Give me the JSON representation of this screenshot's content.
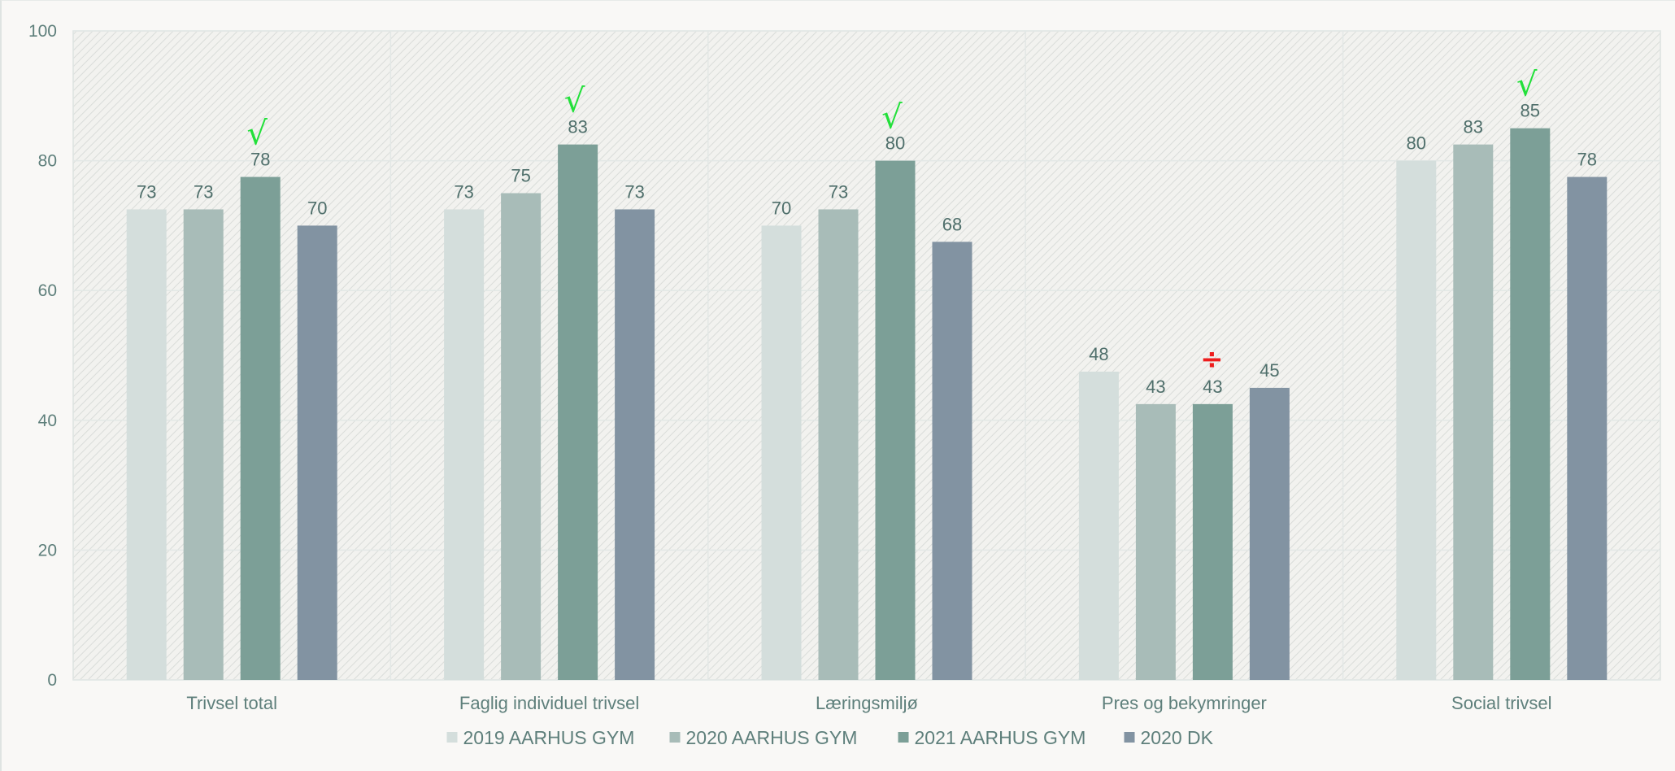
{
  "chart_data": {
    "type": "bar",
    "title": "",
    "xlabel": "",
    "ylabel": "",
    "ylim": [
      0,
      100
    ],
    "yticks": [
      "0",
      "20",
      "40",
      "60",
      "80",
      "100"
    ],
    "grid": true,
    "legend_position": "bottom",
    "categories": [
      "Trivsel total",
      "Faglig individuel trivsel",
      "Læringsmiljø",
      "Pres og bekymringer",
      "Social trivsel"
    ],
    "series": [
      {
        "name": "2019 AARHUS GYM",
        "color": "#d4dedc",
        "values": [
          72.5,
          72.5,
          70,
          47.5,
          80
        ],
        "labels": [
          "73",
          "73",
          "70",
          "48",
          "80"
        ]
      },
      {
        "name": "2020 AARHUS GYM",
        "color": "#a8bcb8",
        "values": [
          72.5,
          75,
          72.5,
          42.5,
          82.5
        ],
        "labels": [
          "73",
          "75",
          "73",
          "43",
          "83"
        ]
      },
      {
        "name": "2021 AARHUS GYM",
        "color": "#7c9f97",
        "values": [
          77.5,
          82.5,
          80,
          42.5,
          85
        ],
        "labels": [
          "78",
          "83",
          "80",
          "43",
          "85"
        ]
      },
      {
        "name": "2020 DK",
        "color": "#8293a2",
        "values": [
          70,
          72.5,
          67.5,
          45,
          77.5
        ],
        "labels": [
          "70",
          "73",
          "68",
          "45",
          "78"
        ]
      }
    ],
    "annotations": [
      {
        "category_index": 0,
        "series_index": 2,
        "symbol": "√",
        "color": "#22e03a"
      },
      {
        "category_index": 1,
        "series_index": 2,
        "symbol": "√",
        "color": "#22e03a"
      },
      {
        "category_index": 2,
        "series_index": 2,
        "symbol": "√",
        "color": "#22e03a"
      },
      {
        "category_index": 3,
        "series_index": 2,
        "symbol": "÷",
        "color": "#ee1c1c"
      },
      {
        "category_index": 4,
        "series_index": 2,
        "symbol": "√",
        "color": "#22e03a"
      }
    ]
  }
}
